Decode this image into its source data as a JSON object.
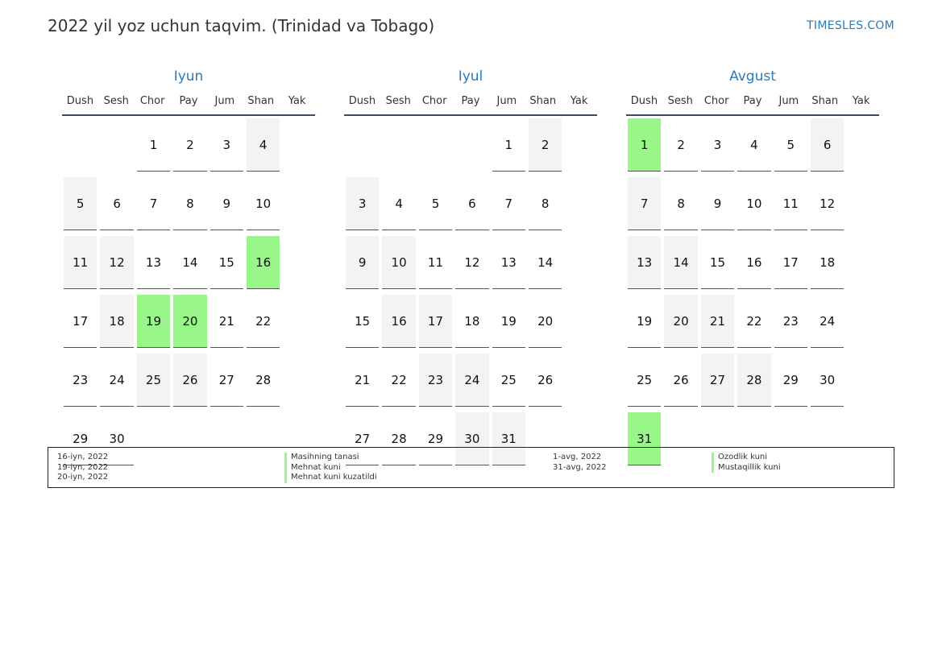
{
  "header": {
    "title": "2022 yil yoz uchun taqvim. (Trinidad va Tobago)",
    "site": "TIMESLES.COM"
  },
  "weekdays": [
    "Dush",
    "Sesh",
    "Chor",
    "Pay",
    "Jum",
    "Shan",
    "Yak"
  ],
  "colors": {
    "holiday": "#98f788",
    "weekend": "#f3f3f3",
    "month_title": "#2e7ab6"
  },
  "months": [
    {
      "name": "Iyun",
      "offset": 2,
      "days": 30,
      "holidays": [
        16,
        19,
        20
      ]
    },
    {
      "name": "Iyul",
      "offset": 4,
      "days": 31,
      "holidays": []
    },
    {
      "name": "Avgust",
      "offset": 0,
      "days": 31,
      "holidays": [
        1,
        31
      ]
    }
  ],
  "legend": {
    "left": [
      {
        "date": "16-iyn, 2022",
        "name": "Masihning tanasi"
      },
      {
        "date": "19-iyn, 2022",
        "name": "Mehnat kuni"
      },
      {
        "date": "20-iyn, 2022",
        "name": "Mehnat kuni kuzatildi"
      }
    ],
    "right": [
      {
        "date": "1-avg, 2022",
        "name": "Ozodlik kuni"
      },
      {
        "date": "31-avg, 2022",
        "name": "Mustaqillik kuni"
      }
    ]
  }
}
